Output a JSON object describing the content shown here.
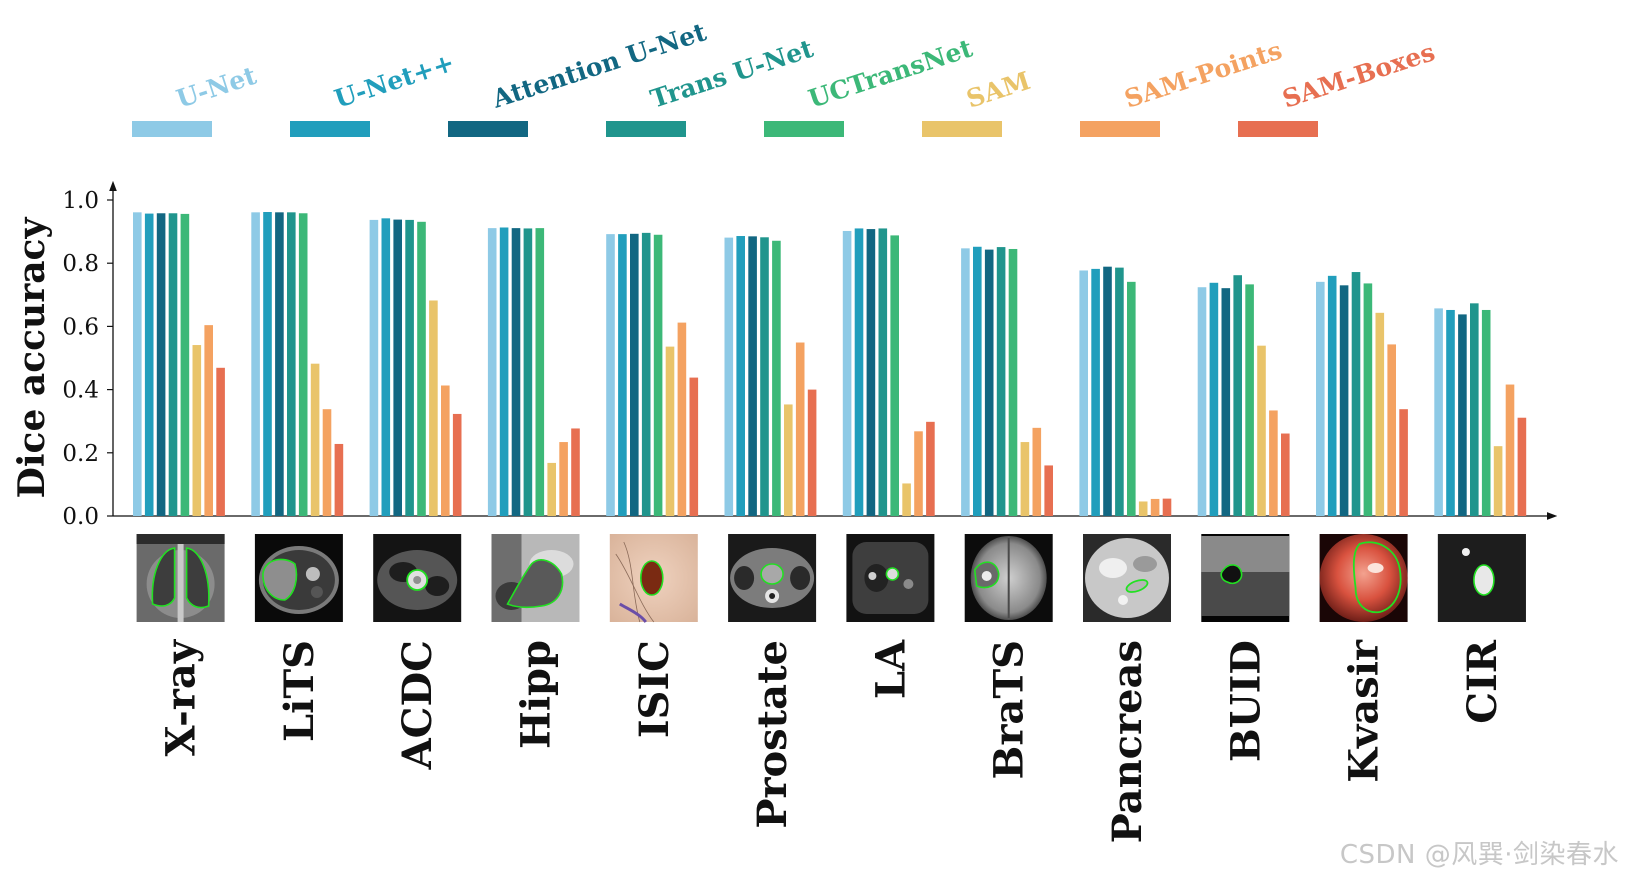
{
  "chart_data": {
    "type": "bar",
    "ylabel": "Dice accuracy",
    "xlabel": "",
    "ylim": [
      0,
      1.0
    ],
    "yticks": [
      "0.0",
      "0.2",
      "0.4",
      "0.6",
      "0.8",
      "1.0"
    ],
    "legend_position": "top",
    "categories": [
      "X-ray",
      "LiTS",
      "ACDC",
      "Hipp",
      "ISIC",
      "Prostate",
      "LA",
      "BraTS",
      "Pancreas",
      "BUID",
      "Kvasir",
      "CIR"
    ],
    "series": [
      {
        "name": "U-Net",
        "color": "#8ecae6",
        "values": [
          0.961,
          0.961,
          0.937,
          0.911,
          0.892,
          0.881,
          0.902,
          0.847,
          0.777,
          0.724,
          0.741,
          0.657
        ]
      },
      {
        "name": "U-Net++",
        "color": "#219ebc",
        "values": [
          0.957,
          0.962,
          0.942,
          0.913,
          0.892,
          0.886,
          0.91,
          0.852,
          0.782,
          0.738,
          0.76,
          0.652
        ]
      },
      {
        "name": "Attention U-Net",
        "color": "#126782",
        "values": [
          0.958,
          0.961,
          0.938,
          0.911,
          0.893,
          0.885,
          0.908,
          0.843,
          0.789,
          0.721,
          0.73,
          0.638
        ]
      },
      {
        "name": "Trans U-Net",
        "color": "#20958d",
        "values": [
          0.958,
          0.961,
          0.937,
          0.91,
          0.896,
          0.882,
          0.91,
          0.851,
          0.786,
          0.762,
          0.772,
          0.673
        ]
      },
      {
        "name": "UCTransNet",
        "color": "#3cb878",
        "values": [
          0.956,
          0.958,
          0.931,
          0.911,
          0.89,
          0.871,
          0.888,
          0.845,
          0.741,
          0.733,
          0.736,
          0.652
        ]
      },
      {
        "name": "SAM",
        "color": "#e9c46a",
        "values": [
          0.541,
          0.482,
          0.682,
          0.168,
          0.536,
          0.353,
          0.103,
          0.234,
          0.046,
          0.539,
          0.643,
          0.221
        ]
      },
      {
        "name": "SAM-Points",
        "color": "#f4a261",
        "values": [
          0.604,
          0.338,
          0.413,
          0.234,
          0.612,
          0.549,
          0.268,
          0.279,
          0.054,
          0.334,
          0.543,
          0.416
        ]
      },
      {
        "name": "SAM-Boxes",
        "color": "#e76f51",
        "values": [
          0.469,
          0.228,
          0.323,
          0.277,
          0.438,
          0.4,
          0.298,
          0.16,
          0.055,
          0.261,
          0.338,
          0.311
        ]
      }
    ]
  },
  "thumbnails": [
    {
      "name": "xray-thumbnail",
      "style": "xray"
    },
    {
      "name": "lits-thumbnail",
      "style": "ct-liver"
    },
    {
      "name": "acdc-thumbnail",
      "style": "mri-heart"
    },
    {
      "name": "hipp-thumbnail",
      "style": "mri-hippo"
    },
    {
      "name": "isic-thumbnail",
      "style": "skin"
    },
    {
      "name": "prostate-thumbnail",
      "style": "mri-pelvis"
    },
    {
      "name": "la-thumbnail",
      "style": "mri-atrium"
    },
    {
      "name": "brats-thumbnail",
      "style": "mri-brain"
    },
    {
      "name": "pancreas-thumbnail",
      "style": "ct-abdomen"
    },
    {
      "name": "buid-thumbnail",
      "style": "ultrasound"
    },
    {
      "name": "kvasir-thumbnail",
      "style": "endoscopy"
    },
    {
      "name": "cir-thumbnail",
      "style": "ct-nodule"
    }
  ],
  "watermark": "CSDN @风巽·剑染春水"
}
